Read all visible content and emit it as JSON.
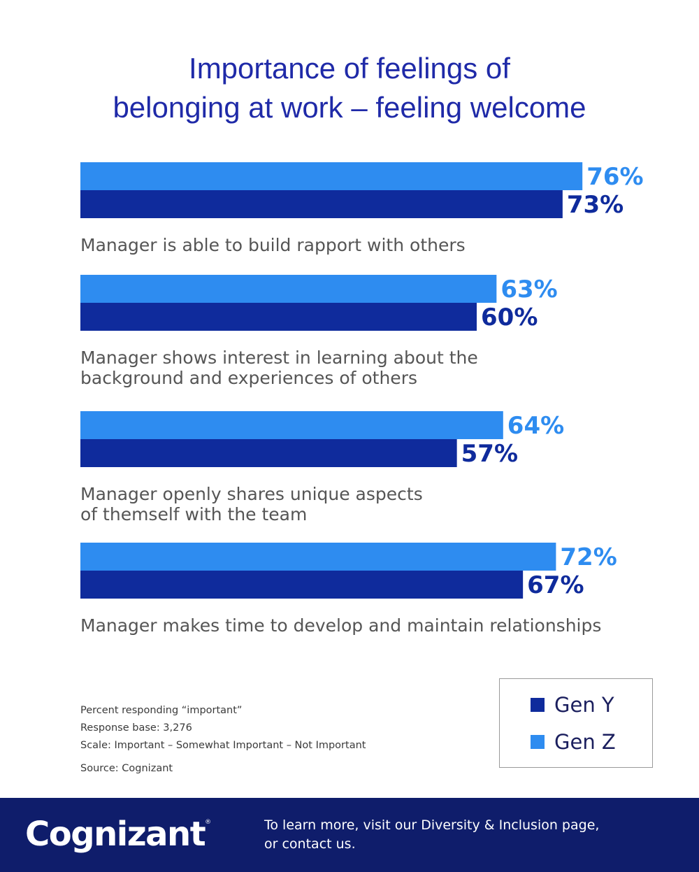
{
  "title_lines": [
    "Importance of feelings of",
    "belonging at work – feeling welcome"
  ],
  "chart_data": {
    "type": "bar",
    "orientation": "horizontal",
    "title": "Importance of feelings of belonging at work – feeling welcome",
    "categories": [
      [
        "Manager is able to build rapport with others"
      ],
      [
        "Manager shows interest in learning about the",
        "background and experiences of others"
      ],
      [
        "Manager openly shares unique aspects",
        "of themself with the team"
      ],
      [
        "Manager makes time to develop and maintain relationships"
      ]
    ],
    "series": [
      {
        "name": "Gen Z",
        "color": "#2e8cf0",
        "values": [
          76,
          63,
          64,
          72
        ]
      },
      {
        "name": "Gen Y",
        "color": "#0f2b9c",
        "values": [
          73,
          60,
          57,
          67
        ]
      }
    ],
    "value_suffix": "%",
    "grid": false,
    "legend_position": "bottom-right"
  },
  "notes": {
    "line1": "Percent responding “important”",
    "line2": "Response base: 3,276",
    "line3": "Scale: Important – Somewhat Important – Not Important",
    "source": "Source: Cognizant"
  },
  "legend": [
    {
      "label": "Gen Y",
      "color": "#0f2b9c"
    },
    {
      "label": "Gen Z",
      "color": "#2e8cf0"
    }
  ],
  "footer": {
    "logo_text": "Cognizant",
    "logo_mark": "®",
    "text_line1_prefix": "To learn more, visit our ",
    "link1": "Diversity & Inclusion page",
    "text_line1_suffix": ",",
    "text_line2_prefix": "or ",
    "link2": "contact us",
    "text_line2_suffix": "."
  }
}
